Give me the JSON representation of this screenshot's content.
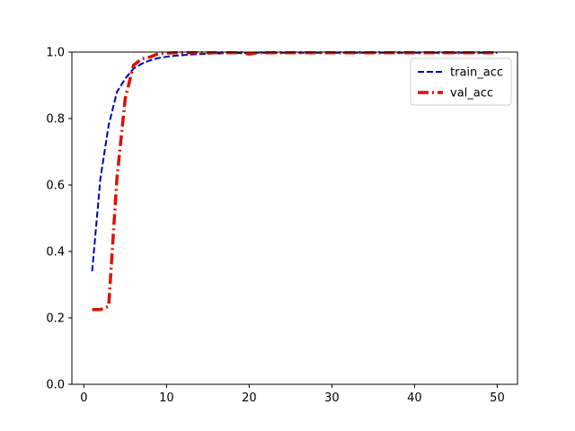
{
  "chart_data": {
    "type": "line",
    "title": "",
    "xlabel": "",
    "ylabel": "",
    "xlim": [
      -1.45,
      52.45
    ],
    "ylim": [
      0.0,
      1.0
    ],
    "xticks": [
      0,
      10,
      20,
      30,
      40,
      50
    ],
    "yticks": [
      0.0,
      0.2,
      0.4,
      0.6,
      0.8,
      1.0
    ],
    "xtick_labels": [
      "0",
      "10",
      "20",
      "30",
      "40",
      "50"
    ],
    "ytick_labels": [
      "0.0",
      "0.2",
      "0.4",
      "0.6",
      "0.8",
      "1.0"
    ],
    "grid": false,
    "legend_position": "upper right",
    "series": [
      {
        "name": "train_acc",
        "color": "#0000bb",
        "style": "dashed",
        "x": [
          1,
          2,
          3,
          4,
          5,
          6,
          7,
          8,
          9,
          10,
          11,
          12,
          13,
          14,
          15,
          16,
          17,
          18,
          19,
          20,
          21,
          22,
          23,
          24,
          25,
          26,
          27,
          28,
          29,
          30,
          31,
          32,
          33,
          34,
          35,
          36,
          37,
          38,
          39,
          40,
          41,
          42,
          43,
          44,
          45,
          46,
          47,
          48,
          49,
          50
        ],
        "y": [
          0.34,
          0.62,
          0.78,
          0.88,
          0.92,
          0.95,
          0.965,
          0.975,
          0.982,
          0.986,
          0.989,
          0.991,
          0.993,
          0.994,
          0.995,
          0.996,
          0.996,
          0.997,
          0.997,
          0.997,
          0.998,
          0.998,
          0.998,
          0.998,
          0.998,
          0.998,
          0.998,
          0.998,
          0.998,
          0.998,
          0.998,
          0.998,
          0.998,
          0.998,
          0.998,
          0.998,
          0.998,
          0.998,
          0.998,
          0.998,
          0.998,
          0.998,
          0.998,
          0.998,
          0.998,
          0.998,
          0.998,
          0.998,
          0.998,
          0.998
        ]
      },
      {
        "name": "val_acc",
        "color": "#dd1100",
        "style": "dashdot",
        "x": [
          1,
          2,
          3,
          4,
          5,
          6,
          7,
          8,
          9,
          10,
          11,
          12,
          13,
          14,
          15,
          16,
          17,
          18,
          19,
          20,
          21,
          22,
          23,
          24,
          25,
          26,
          27,
          28,
          29,
          30,
          31,
          32,
          33,
          34,
          35,
          36,
          37,
          38,
          39,
          40,
          41,
          42,
          43,
          44,
          45,
          46,
          47,
          48,
          49,
          50
        ],
        "y": [
          0.225,
          0.225,
          0.235,
          0.62,
          0.86,
          0.96,
          0.98,
          0.985,
          0.995,
          0.997,
          0.998,
          0.998,
          0.998,
          0.998,
          0.998,
          0.998,
          0.998,
          0.998,
          0.998,
          0.994,
          0.998,
          0.998,
          0.998,
          0.998,
          0.998,
          0.998,
          0.998,
          0.998,
          0.998,
          0.998,
          0.998,
          0.998,
          0.998,
          0.998,
          0.998,
          0.998,
          0.998,
          0.998,
          0.998,
          0.998,
          0.998,
          0.998,
          0.998,
          0.998,
          0.998,
          0.998,
          0.998,
          0.998,
          0.998,
          0.998
        ]
      }
    ]
  }
}
